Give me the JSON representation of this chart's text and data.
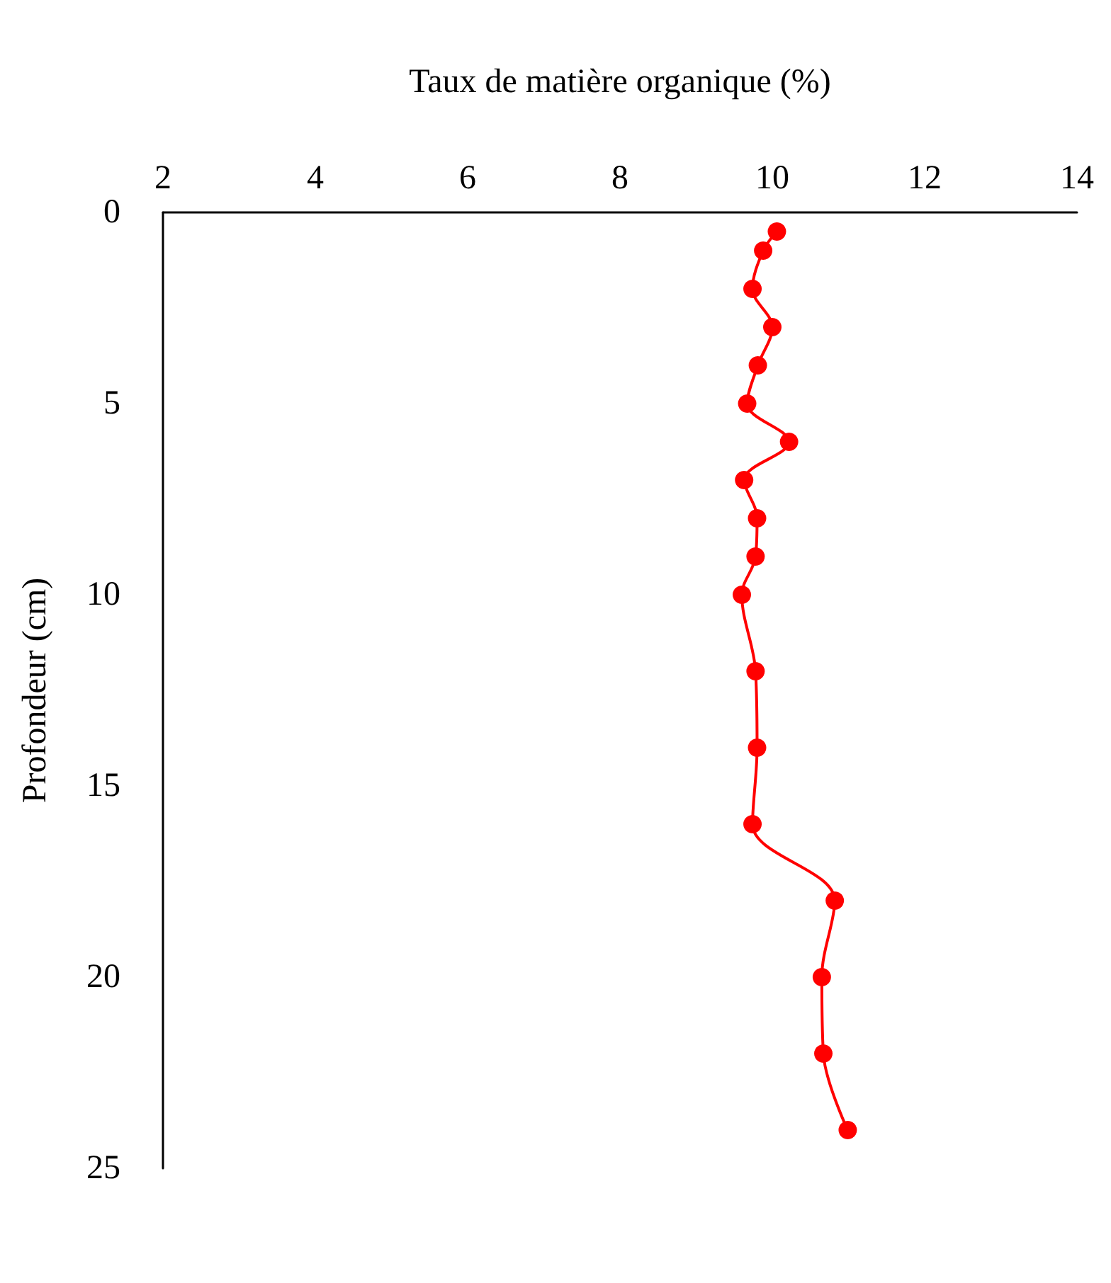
{
  "chart_data": {
    "type": "line",
    "xlabel": "Taux de matière organique (%)",
    "ylabel": "Profondeur (cm)",
    "xlim": [
      2,
      14
    ],
    "xticks": [
      2,
      4,
      6,
      8,
      10,
      12,
      14
    ],
    "ylim": [
      25,
      0
    ],
    "yticks": [
      0,
      5,
      10,
      15,
      20,
      25
    ],
    "grid": false,
    "marker": "circle",
    "line_style": "solid",
    "series": [
      {
        "color": "#ff0000",
        "x": [
          10.06,
          9.88,
          9.74,
          10.0,
          9.81,
          9.67,
          10.22,
          9.63,
          9.8,
          9.78,
          9.6,
          9.78,
          9.8,
          9.74,
          10.82,
          10.65,
          10.67,
          10.99
        ],
        "values": [
          0.5,
          1,
          2,
          3,
          4,
          5,
          6,
          7,
          8,
          9,
          10,
          12,
          14,
          16,
          18,
          20,
          22,
          24
        ]
      }
    ]
  }
}
